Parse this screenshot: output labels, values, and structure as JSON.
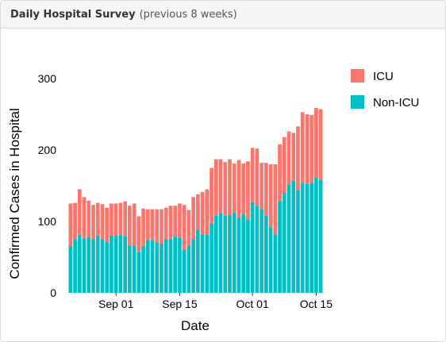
{
  "header": {
    "title": "Daily Hospital Survey",
    "subtitle": "(previous 8 weeks)"
  },
  "chart_data": {
    "type": "bar",
    "stacked": true,
    "title": "Daily Hospital Survey",
    "subtitle": "(previous 8 weeks)",
    "xlabel": "Date",
    "ylabel": "Confirmed Cases in Hospital",
    "ylim": [
      0,
      300
    ],
    "yticks": [
      0,
      100,
      200,
      300
    ],
    "x_tick_labels": [
      {
        "label": "Sep 01",
        "date": "2020-09-01"
      },
      {
        "label": "Sep 15",
        "date": "2020-09-15"
      },
      {
        "label": "Oct 01",
        "date": "2020-10-01"
      },
      {
        "label": "Oct 15",
        "date": "2020-10-15"
      }
    ],
    "grid": false,
    "legend_position": "top-right",
    "categories": [
      "2020-08-22",
      "2020-08-23",
      "2020-08-24",
      "2020-08-25",
      "2020-08-26",
      "2020-08-27",
      "2020-08-28",
      "2020-08-29",
      "2020-08-30",
      "2020-08-31",
      "2020-09-01",
      "2020-09-02",
      "2020-09-03",
      "2020-09-04",
      "2020-09-05",
      "2020-09-06",
      "2020-09-07",
      "2020-09-08",
      "2020-09-09",
      "2020-09-10",
      "2020-09-11",
      "2020-09-12",
      "2020-09-13",
      "2020-09-14",
      "2020-09-15",
      "2020-09-16",
      "2020-09-17",
      "2020-09-18",
      "2020-09-19",
      "2020-09-20",
      "2020-09-21",
      "2020-09-22",
      "2020-09-23",
      "2020-09-24",
      "2020-09-25",
      "2020-09-26",
      "2020-09-27",
      "2020-09-28",
      "2020-09-29",
      "2020-09-30",
      "2020-10-01",
      "2020-10-02",
      "2020-10-03",
      "2020-10-04",
      "2020-10-05",
      "2020-10-06",
      "2020-10-07",
      "2020-10-08",
      "2020-10-09",
      "2020-10-10",
      "2020-10-11",
      "2020-10-12",
      "2020-10-13",
      "2020-10-14",
      "2020-10-15",
      "2020-10-16"
    ],
    "series": [
      {
        "name": "Non-ICU",
        "color": "#00BFC4",
        "values": [
          65,
          75,
          81,
          76,
          78,
          75,
          80,
          75,
          71,
          80,
          80,
          81,
          79,
          66,
          66,
          57,
          65,
          74,
          74,
          71,
          69,
          75,
          75,
          79,
          77,
          60,
          66,
          75,
          88,
          82,
          82,
          97,
          108,
          112,
          108,
          109,
          112,
          105,
          110,
          103,
          127,
          122,
          117,
          108,
          92,
          82,
          129,
          140,
          152,
          157,
          144,
          154,
          153,
          154,
          162,
          158
        ]
      },
      {
        "name": "ICU",
        "color": "#F8766D",
        "values": [
          60,
          51,
          64,
          58,
          51,
          48,
          46,
          49,
          48,
          45,
          45,
          45,
          49,
          56,
          59,
          50,
          53,
          43,
          43,
          46,
          48,
          44,
          47,
          43,
          48,
          63,
          50,
          59,
          50,
          59,
          63,
          78,
          79,
          75,
          75,
          78,
          69,
          81,
          71,
          81,
          76,
          80,
          65,
          74,
          88,
          98,
          79,
          78,
          74,
          67,
          89,
          99,
          97,
          95,
          97,
          99
        ]
      }
    ]
  }
}
